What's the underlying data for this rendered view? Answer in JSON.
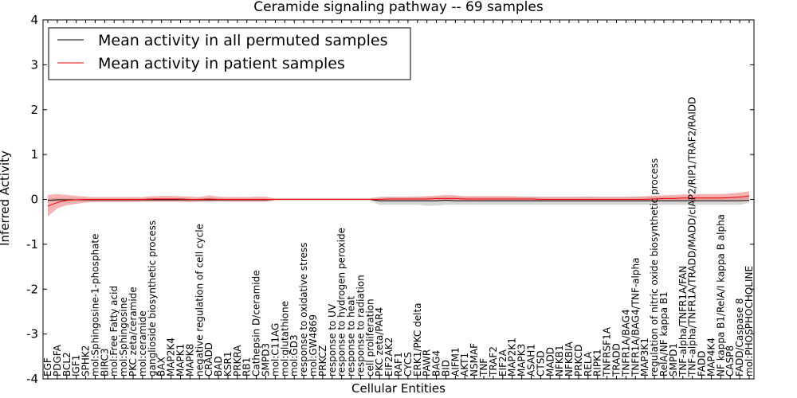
{
  "chart_data": {
    "type": "line",
    "title": "Ceramide signaling pathway -- 69 samples",
    "xlabel": "Cellular Entities",
    "ylabel": "Inferred Activity",
    "ylim": [
      -4,
      4
    ],
    "yticks": [
      -4,
      -3,
      -2,
      -1,
      0,
      1,
      2,
      3,
      4
    ],
    "grid": false,
    "legend_position": "top-left",
    "categories": [
      "EGF",
      "PDGFA",
      "BCL2",
      "IGF1",
      "SPHK2",
      "mol:Sphingosine-1-phosphate",
      "BIRC3",
      "mol:Free Fatty acid",
      "mol:Sphingosine",
      "PKC zeta/ceramide",
      "mol:ceramide",
      "ganglioside biosynthetic process",
      "BAX",
      "MAP2K4",
      "MAPK1",
      "MAPK8",
      "negative regulation of cell cycle",
      "CRADD",
      "BAD",
      "KSR1",
      "PRKRA",
      "RB1",
      "Cathepsin D/ceramide",
      "SMPD3",
      "mol:C11AG",
      "mol:glutathione",
      "mol:GD3",
      "response to oxidative stress",
      "mol:GW4869",
      "PRKCZ",
      "response to UV",
      "response to hydrogen peroxide",
      "response to heat",
      "response to radiation",
      "cell proliferation",
      "PKC zeta/PAR4",
      "EIF2AK2",
      "RAF1",
      "CYCS",
      "ERK1/PKC delta",
      "PAWR",
      "BAG4",
      "BID",
      "AIFM1",
      "AKT1",
      "NSMAF",
      "TNF",
      "TRAF2",
      "EIF2A",
      "MAP2K1",
      "MAPK3",
      "ASAH1",
      "CTSD",
      "MADD",
      "NFKB1",
      "NFKBIA",
      "PRKCD",
      "RELA",
      "RIPK1",
      "TNFRSF1A",
      "TRADD",
      "TNFR1A/BAG4",
      "TNFR1A/BAG4/TNF-alpha",
      "MAP3K1",
      "regulation of nitric oxide biosynthetic process",
      "RelA/NF kappa B1",
      "SMPD1",
      "TNF-alpha/TNFR1A/FAN",
      "TNF-alpha/TNFR1A/TRADD/MADD/cIAP2/RIP1/TRAF2/RAIDD",
      "FADD",
      "MAP4K4",
      "NF kappa B1/RelA/I kappa B alpha",
      "CASP8",
      "FADD/Caspase 8",
      "mol:PHOSPHOCHOLINE"
    ],
    "series": [
      {
        "name": "Mean activity in all permuted samples",
        "color": "#000000",
        "band_color": "#999999",
        "values": [
          -0.02,
          -0.01,
          -0.01,
          -0.01,
          -0.01,
          -0.01,
          -0.01,
          -0.01,
          -0.01,
          -0.01,
          -0.01,
          -0.01,
          -0.01,
          -0.01,
          -0.01,
          -0.01,
          -0.01,
          -0.01,
          -0.01,
          -0.01,
          -0.01,
          -0.01,
          -0.01,
          -0.01,
          0,
          0,
          0,
          0,
          0,
          0,
          0,
          0,
          0,
          0,
          0,
          -0.03,
          -0.03,
          -0.03,
          -0.03,
          -0.03,
          -0.03,
          -0.03,
          -0.02,
          -0.03,
          -0.03,
          -0.03,
          -0.03,
          -0.03,
          -0.03,
          -0.03,
          -0.03,
          -0.03,
          -0.03,
          -0.03,
          -0.03,
          -0.03,
          -0.03,
          -0.03,
          -0.03,
          -0.03,
          -0.03,
          -0.03,
          -0.03,
          -0.03,
          -0.03,
          -0.03,
          -0.03,
          -0.03,
          -0.03,
          -0.03,
          -0.03,
          -0.03,
          -0.03,
          -0.03,
          -0.02
        ],
        "lower": [
          -0.06,
          -0.05,
          -0.05,
          -0.05,
          -0.05,
          -0.05,
          -0.05,
          -0.05,
          -0.05,
          -0.05,
          -0.05,
          -0.05,
          -0.05,
          -0.05,
          -0.05,
          -0.05,
          -0.05,
          -0.05,
          -0.05,
          -0.05,
          -0.05,
          -0.05,
          -0.05,
          -0.05,
          -0.03,
          -0.03,
          -0.03,
          -0.03,
          -0.03,
          -0.03,
          -0.03,
          -0.03,
          -0.03,
          -0.03,
          -0.03,
          -0.12,
          -0.12,
          -0.12,
          -0.12,
          -0.12,
          -0.14,
          -0.14,
          -0.12,
          -0.12,
          -0.12,
          -0.12,
          -0.12,
          -0.12,
          -0.12,
          -0.12,
          -0.12,
          -0.12,
          -0.12,
          -0.12,
          -0.12,
          -0.12,
          -0.12,
          -0.12,
          -0.12,
          -0.12,
          -0.12,
          -0.12,
          -0.12,
          -0.12,
          -0.12,
          -0.12,
          -0.12,
          -0.12,
          -0.12,
          -0.12,
          -0.12,
          -0.12,
          -0.12,
          -0.12,
          -0.08
        ],
        "upper": [
          0.02,
          0.03,
          0.03,
          0.03,
          0.03,
          0.03,
          0.03,
          0.03,
          0.03,
          0.03,
          0.03,
          0.03,
          0.03,
          0.03,
          0.03,
          0.03,
          0.03,
          0.03,
          0.03,
          0.03,
          0.03,
          0.03,
          0.03,
          0.03,
          0.03,
          0.03,
          0.03,
          0.03,
          0.03,
          0.03,
          0.03,
          0.03,
          0.03,
          0.03,
          0.03,
          0.06,
          0.06,
          0.06,
          0.06,
          0.06,
          0.06,
          0.06,
          0.06,
          0.06,
          0.06,
          0.06,
          0.06,
          0.06,
          0.06,
          0.06,
          0.06,
          0.06,
          0.06,
          0.06,
          0.06,
          0.06,
          0.06,
          0.06,
          0.06,
          0.06,
          0.06,
          0.06,
          0.06,
          0.06,
          0.06,
          0.06,
          0.06,
          0.06,
          0.06,
          0.06,
          0.06,
          0.06,
          0.06,
          0.06,
          0.06
        ]
      },
      {
        "name": "Mean activity in patient samples",
        "color": "#ff0000",
        "band_color": "#f08080",
        "values": [
          -0.15,
          -0.07,
          -0.02,
          -0.01,
          0,
          0,
          0,
          0,
          0,
          0,
          0,
          0.01,
          0.01,
          0.01,
          0.01,
          0,
          0,
          0.01,
          0,
          0,
          0,
          0,
          0,
          0,
          0,
          0,
          0,
          0,
          0,
          0,
          0,
          0,
          0,
          0,
          0,
          0,
          0.01,
          0.01,
          0.01,
          0.01,
          0.01,
          0.02,
          0.02,
          0.02,
          0.01,
          0.01,
          0.01,
          0.01,
          0.01,
          0.01,
          0.01,
          0.01,
          0,
          0,
          0,
          0,
          0,
          0,
          0,
          0,
          0,
          0,
          0,
          0,
          0.01,
          0.02,
          0.02,
          0.03,
          0.03,
          0.03,
          0.03,
          0.03,
          0.04,
          0.05,
          0.08
        ],
        "lower": [
          -0.38,
          -0.2,
          -0.13,
          -0.1,
          -0.07,
          -0.06,
          -0.06,
          -0.06,
          -0.06,
          -0.06,
          -0.05,
          -0.05,
          -0.05,
          -0.05,
          -0.05,
          -0.06,
          -0.05,
          -0.05,
          -0.04,
          -0.05,
          -0.05,
          -0.05,
          -0.05,
          -0.05,
          -0.01,
          -0.01,
          -0.01,
          -0.01,
          -0.01,
          -0.01,
          -0.01,
          -0.01,
          -0.01,
          -0.01,
          -0.01,
          -0.02,
          -0.02,
          -0.02,
          -0.02,
          -0.02,
          -0.02,
          -0.02,
          -0.03,
          -0.02,
          -0.02,
          -0.03,
          -0.02,
          -0.02,
          -0.02,
          -0.02,
          -0.02,
          -0.02,
          -0.02,
          -0.02,
          -0.02,
          -0.02,
          -0.02,
          -0.02,
          -0.02,
          -0.02,
          -0.02,
          -0.02,
          -0.02,
          -0.02,
          -0.02,
          -0.02,
          -0.02,
          -0.02,
          -0.02,
          -0.02,
          -0.02,
          -0.02,
          -0.02,
          -0.02,
          0.0
        ],
        "upper": [
          0.1,
          0.12,
          0.1,
          0.08,
          0.06,
          0.05,
          0.05,
          0.05,
          0.05,
          0.05,
          0.05,
          0.07,
          0.08,
          0.08,
          0.07,
          0.06,
          0.05,
          0.09,
          0.06,
          0.05,
          0.05,
          0.05,
          0.06,
          0.06,
          0.02,
          0.02,
          0.02,
          0.02,
          0.02,
          0.02,
          0.02,
          0.02,
          0.02,
          0.02,
          0.02,
          0.04,
          0.05,
          0.05,
          0.05,
          0.06,
          0.07,
          0.08,
          0.1,
          0.09,
          0.07,
          0.07,
          0.07,
          0.07,
          0.07,
          0.07,
          0.06,
          0.06,
          0.05,
          0.05,
          0.05,
          0.05,
          0.05,
          0.06,
          0.05,
          0.05,
          0.05,
          0.05,
          0.06,
          0.07,
          0.08,
          0.09,
          0.1,
          0.11,
          0.11,
          0.12,
          0.12,
          0.12,
          0.13,
          0.15,
          0.18
        ]
      }
    ]
  }
}
